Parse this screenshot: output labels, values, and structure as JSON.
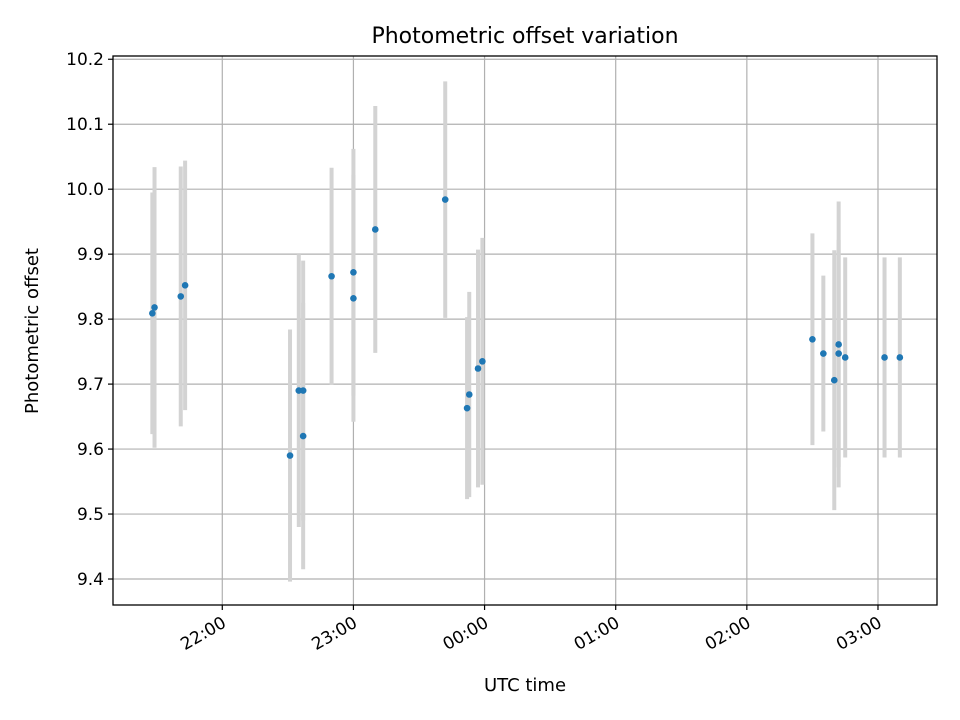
{
  "chart_data": {
    "type": "scatter",
    "title": "Photometric offset variation",
    "xlabel": "UTC time",
    "ylabel": "Photometric offset",
    "xlim": [
      "21:10",
      "03:27"
    ],
    "ylim": [
      9.36,
      10.205
    ],
    "x_ticks": [
      "22:00",
      "23:00",
      "00:00",
      "01:00",
      "02:00",
      "03:00"
    ],
    "y_ticks": [
      9.4,
      9.5,
      9.6,
      9.7,
      9.8,
      9.9,
      10.0,
      10.1,
      10.2
    ],
    "y_tick_labels": [
      "9.4",
      "9.5",
      "9.6",
      "9.7",
      "9.8",
      "9.9",
      "10.0",
      "10.1",
      "10.2"
    ],
    "grid": true,
    "marker_color": "#1f77b4",
    "errorbar_color": "#d3d3d3",
    "series": [
      {
        "points": [
          {
            "t": "21:28",
            "y": 9.809,
            "err": 0.186
          },
          {
            "t": "21:29",
            "y": 9.818,
            "err": 0.216
          },
          {
            "t": "21:41",
            "y": 9.835,
            "err": 0.2
          },
          {
            "t": "21:43",
            "y": 9.852,
            "err": 0.192
          },
          {
            "t": "22:31",
            "y": 9.59,
            "err": 0.194
          },
          {
            "t": "22:35",
            "y": 9.69,
            "err": 0.21
          },
          {
            "t": "22:37",
            "y": 9.62,
            "err": 0.205
          },
          {
            "t": "22:37",
            "y": 9.69,
            "err": 0.2
          },
          {
            "t": "22:50",
            "y": 9.866,
            "err": 0.167
          },
          {
            "t": "23:00",
            "y": 9.872,
            "err": 0.19
          },
          {
            "t": "23:00",
            "y": 9.832,
            "err": 0.19
          },
          {
            "t": "23:10",
            "y": 9.938,
            "err": 0.19
          },
          {
            "t": "23:42",
            "y": 9.984,
            "err": 0.182
          },
          {
            "t": "23:52",
            "y": 9.663,
            "err": 0.14
          },
          {
            "t": "23:53",
            "y": 9.684,
            "err": 0.158
          },
          {
            "t": "23:57",
            "y": 9.724,
            "err": 0.183
          },
          {
            "t": "23:59",
            "y": 9.735,
            "err": 0.19
          },
          {
            "t": "02:30",
            "y": 9.769,
            "err": 0.163
          },
          {
            "t": "02:35",
            "y": 9.747,
            "err": 0.12
          },
          {
            "t": "02:40",
            "y": 9.706,
            "err": 0.2
          },
          {
            "t": "02:42",
            "y": 9.761,
            "err": 0.22
          },
          {
            "t": "02:42",
            "y": 9.747,
            "err": 0.175
          },
          {
            "t": "02:45",
            "y": 9.741,
            "err": 0.154
          },
          {
            "t": "03:03",
            "y": 9.741,
            "err": 0.154
          },
          {
            "t": "03:10",
            "y": 9.741,
            "err": 0.154
          }
        ]
      }
    ]
  }
}
